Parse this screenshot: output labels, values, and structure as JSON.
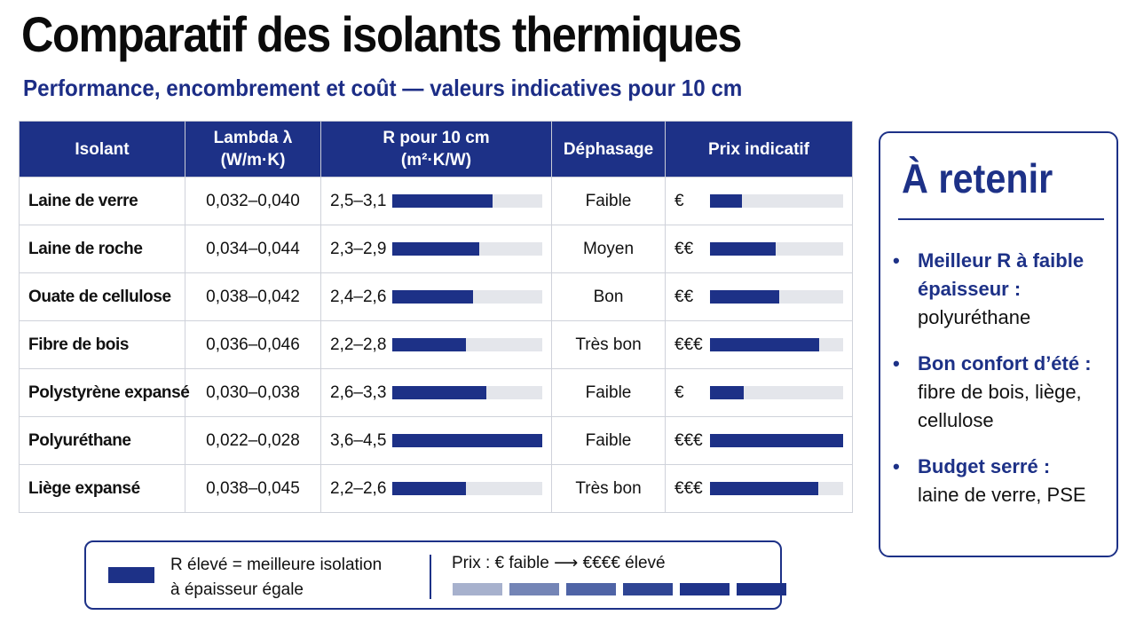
{
  "header": {
    "title": "Comparatif des isolants thermiques",
    "subtitle": "Performance, encombrement et coût — valeurs indicatives pour 10 cm"
  },
  "table": {
    "columns": {
      "isolant": "Isolant",
      "lambda_l1": "Lambda λ",
      "lambda_l2": "(W/m·K)",
      "r_l1": "R pour 10 cm",
      "r_l2": "(m²·K/W)",
      "dephasage": "Déphasage",
      "prix": "Prix indicatif"
    },
    "rows": [
      {
        "name": "Laine de verre",
        "lambda": "0,032–0,040",
        "r": "2,5–3,1",
        "r_level": 0.67,
        "dephasage": "Faible",
        "prix": "€",
        "prix_level": 0.24
      },
      {
        "name": "Laine de roche",
        "lambda": "0,034–0,044",
        "r": "2,3–2,9",
        "r_level": 0.58,
        "dephasage": "Moyen",
        "prix": "€€",
        "prix_level": 0.49
      },
      {
        "name": "Ouate de cellulose",
        "lambda": "0,038–0,042",
        "r": "2,4–2,6",
        "r_level": 0.54,
        "dephasage": "Bon",
        "prix": "€€",
        "prix_level": 0.52
      },
      {
        "name": "Fibre de bois",
        "lambda": "0,036–0,046",
        "r": "2,2–2,8",
        "r_level": 0.49,
        "dephasage": "Très bon",
        "prix": "€€€",
        "prix_level": 0.82
      },
      {
        "name": "Polystyrène expansé",
        "lambda": "0,030–0,038",
        "r": "2,6–3,3",
        "r_level": 0.63,
        "dephasage": "Faible",
        "prix": "€",
        "prix_level": 0.25
      },
      {
        "name": "Polyuréthane",
        "lambda": "0,022–0,028",
        "r": "3,6–4,5",
        "r_level": 1.0,
        "dephasage": "Faible",
        "prix": "€€€",
        "prix_level": 1.0
      },
      {
        "name": "Liège expansé",
        "lambda": "0,038–0,045",
        "r": "2,2–2,6",
        "r_level": 0.49,
        "dephasage": "Très bon",
        "prix": "€€€",
        "prix_level": 0.81
      }
    ]
  },
  "retenir": {
    "title": "À retenir",
    "points": [
      {
        "head": "Meilleur R à faible épaisseur :",
        "body": "polyuréthane"
      },
      {
        "head": "Bon confort d’été :",
        "body": "fibre de bois, liège, cellulose"
      },
      {
        "head": "Budget serré :",
        "body": "laine de verre, PSE"
      }
    ],
    "bullet": "•"
  },
  "legend": {
    "r_line1": "R élevé = meilleure isolation",
    "r_line2": "à épaisseur égale",
    "price": "Prix : € faible ⟶ €€€€ élevé",
    "ramp_colors": [
      "#a7b1cd",
      "#7485b6",
      "#4f64a6",
      "#2f4594",
      "#1f338a",
      "#1d3187"
    ]
  },
  "colors": {
    "accent": "#1d3187",
    "track": "#e4e6eb"
  }
}
